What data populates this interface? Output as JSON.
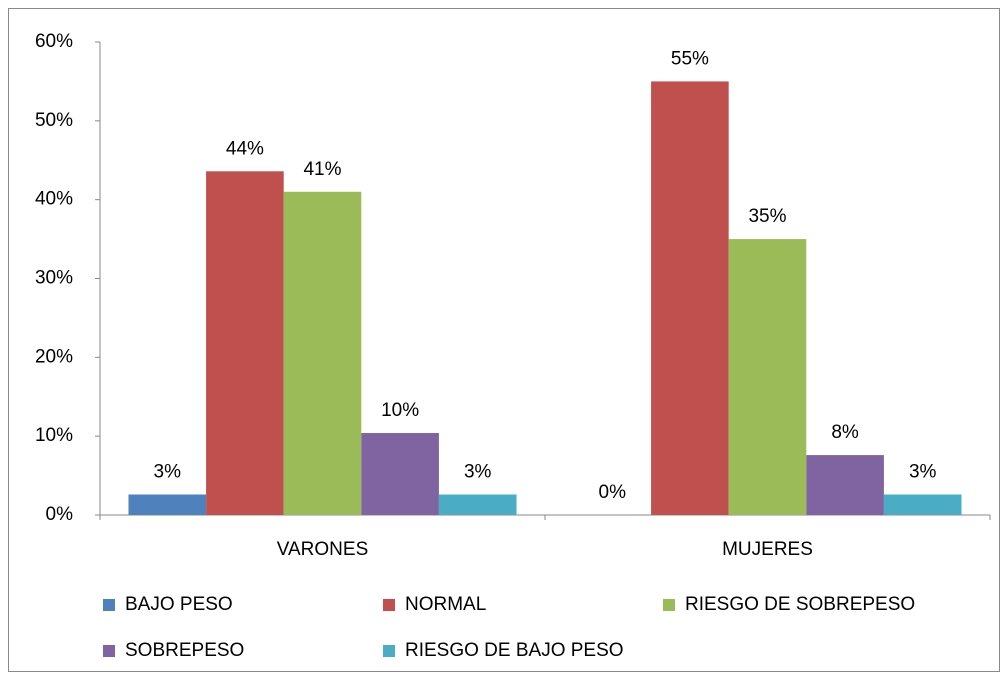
{
  "chart_data": {
    "type": "bar",
    "categories": [
      "VARONES",
      "MUJERES"
    ],
    "series": [
      {
        "name": "BAJO PESO",
        "color": "#4f81bd",
        "values": [
          2.6,
          0
        ],
        "value_labels": [
          "3%",
          "0%"
        ]
      },
      {
        "name": "NORMAL",
        "color": "#c0504d",
        "values": [
          43.6,
          55
        ],
        "value_labels": [
          "44%",
          "55%"
        ]
      },
      {
        "name": "RIESGO DE SOBREPESO",
        "color": "#9bbb59",
        "values": [
          41,
          35
        ],
        "value_labels": [
          "41%",
          "35%"
        ]
      },
      {
        "name": "SOBREPESO",
        "color": "#8064a2",
        "values": [
          10.4,
          7.6
        ],
        "value_labels": [
          "10%",
          "8%"
        ]
      },
      {
        "name": "RIESGO DE BAJO PESO",
        "color": "#4bacc6",
        "values": [
          2.6,
          2.6
        ],
        "value_labels": [
          "3%",
          "3%"
        ]
      }
    ],
    "ylim": [
      0,
      60
    ],
    "yticks": [
      {
        "value": 0,
        "label": "0%"
      },
      {
        "value": 10,
        "label": "10%"
      },
      {
        "value": 20,
        "label": "20%"
      },
      {
        "value": 30,
        "label": "30%"
      },
      {
        "value": 40,
        "label": "40%"
      },
      {
        "value": 50,
        "label": "50%"
      },
      {
        "value": 60,
        "label": "60%"
      }
    ],
    "legend": "bottom"
  }
}
